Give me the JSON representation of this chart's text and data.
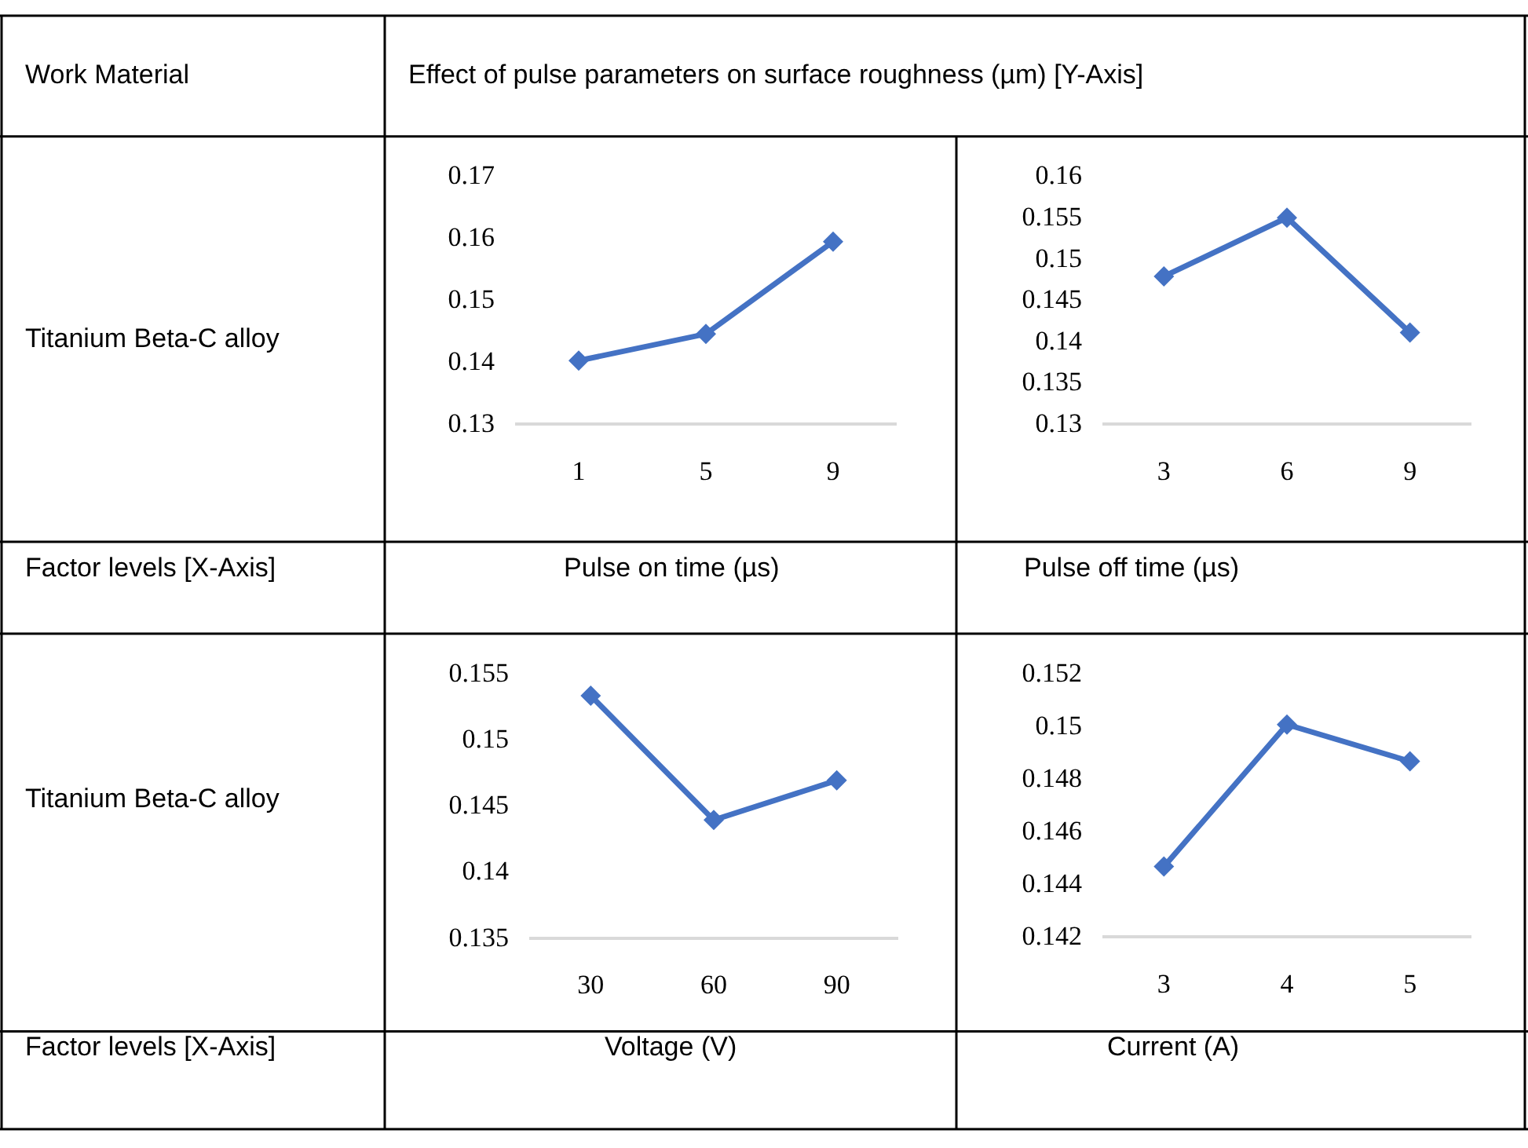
{
  "chart_data": [
    {
      "type": "line",
      "xlabel": "Pulse on time (µs)",
      "categories": [
        "1",
        "5",
        "9"
      ],
      "series": [
        {
          "color": "#4472c4",
          "values": [
            0.14,
            0.1443,
            0.1592
          ]
        }
      ],
      "ylim": [
        0.13,
        0.17
      ],
      "yticks": [
        0.13,
        0.14,
        0.15,
        0.16,
        0.17
      ],
      "marker": "diamond",
      "line_style": "solid"
    },
    {
      "type": "line",
      "xlabel": "Pulse off time (µs)",
      "categories": [
        "3",
        "6",
        "9"
      ],
      "series": [
        {
          "color": "#4472c4",
          "values": [
            0.1477,
            0.1548,
            0.1409
          ]
        }
      ],
      "ylim": [
        0.13,
        0.16
      ],
      "yticks": [
        0.13,
        0.135,
        0.14,
        0.145,
        0.15,
        0.155,
        0.16
      ],
      "marker": "diamond",
      "line_style": "solid"
    },
    {
      "type": "line",
      "xlabel": "Voltage (V)",
      "categories": [
        "30",
        "60",
        "90"
      ],
      "series": [
        {
          "color": "#4472c4",
          "values": [
            0.1532,
            0.1438,
            0.1468
          ]
        }
      ],
      "ylim": [
        0.135,
        0.155
      ],
      "yticks": [
        0.135,
        0.14,
        0.145,
        0.15,
        0.155
      ],
      "marker": "diamond",
      "line_style": "solid"
    },
    {
      "type": "line",
      "xlabel": "Current (A)",
      "categories": [
        "3",
        "4",
        "5"
      ],
      "series": [
        {
          "color": "#4472c4",
          "values": [
            0.1446,
            0.15,
            0.1486
          ]
        }
      ],
      "ylim": [
        0.142,
        0.152
      ],
      "yticks": [
        0.142,
        0.144,
        0.146,
        0.148,
        0.15,
        0.152
      ],
      "marker": "diamond",
      "line_style": "solid"
    },
    {
      "type": "other",
      "annotations": [
        "Work Material",
        "Effect of pulse parameters on surface roughness (µm) [Y-Axis]",
        "Titanium Beta-C alloy",
        "Factor levels [X-Axis]",
        "Titanium Beta-C alloy",
        "Factor levels [X-Axis]"
      ]
    }
  ]
}
